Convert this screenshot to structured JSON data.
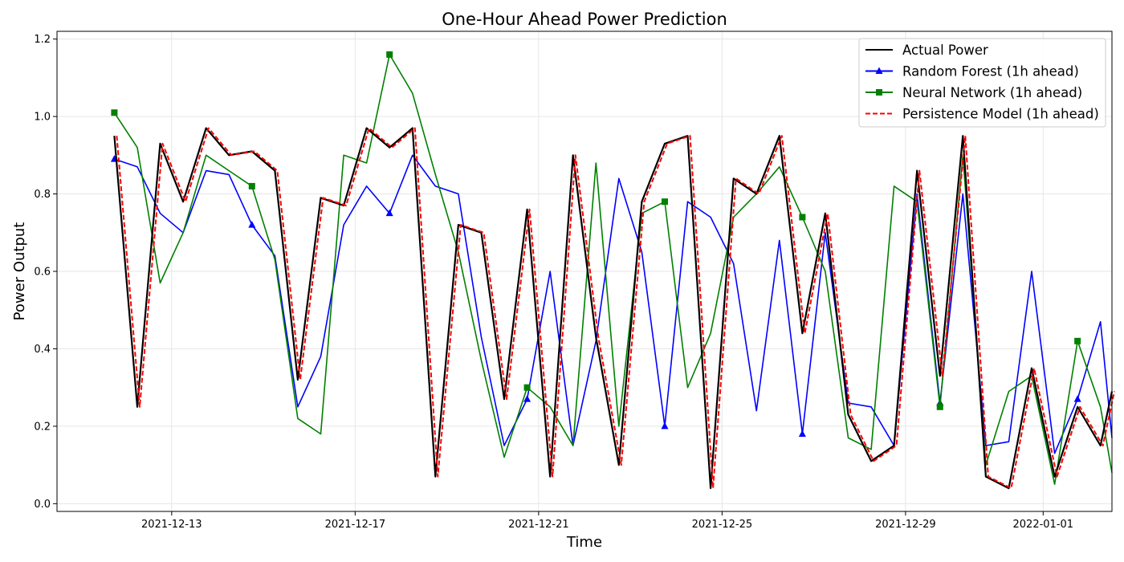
{
  "chart_data": {
    "type": "line",
    "title": "One-Hour Ahead Power Prediction",
    "xlabel": "Time",
    "ylabel": "Power Output",
    "xlim": [
      "2021-12-10T12:00",
      "2022-01-02T12:00"
    ],
    "ylim": [
      -0.02,
      1.22
    ],
    "x_ticks": [
      "2021-12-13",
      "2021-12-17",
      "2021-12-21",
      "2021-12-25",
      "2021-12-29",
      "2022-01-01"
    ],
    "y_ticks": [
      "0.0",
      "0.2",
      "0.4",
      "0.6",
      "0.8",
      "1.0",
      "1.2"
    ],
    "grid": true,
    "legend_position": "top-right",
    "series": [
      {
        "name": "Actual Power",
        "color": "#000000",
        "style": "solid",
        "points": [
          [
            "2021-12-11T18:00",
            0.95
          ],
          [
            "2021-12-12T06:00",
            0.25
          ],
          [
            "2021-12-12T18:00",
            0.93
          ],
          [
            "2021-12-13T06:00",
            0.78
          ],
          [
            "2021-12-13T18:00",
            0.97
          ],
          [
            "2021-12-14T06:00",
            0.9
          ],
          [
            "2021-12-14T18:00",
            0.91
          ],
          [
            "2021-12-15T06:00",
            0.86
          ],
          [
            "2021-12-15T18:00",
            0.32
          ],
          [
            "2021-12-16T06:00",
            0.79
          ],
          [
            "2021-12-16T18:00",
            0.77
          ],
          [
            "2021-12-17T06:00",
            0.97
          ],
          [
            "2021-12-17T18:00",
            0.92
          ],
          [
            "2021-12-18T06:00",
            0.97
          ],
          [
            "2021-12-18T18:00",
            0.07
          ],
          [
            "2021-12-19T06:00",
            0.72
          ],
          [
            "2021-12-19T18:00",
            0.7
          ],
          [
            "2021-12-20T06:00",
            0.27
          ],
          [
            "2021-12-20T18:00",
            0.76
          ],
          [
            "2021-12-21T06:00",
            0.07
          ],
          [
            "2021-12-21T18:00",
            0.9
          ],
          [
            "2021-12-22T06:00",
            0.43
          ],
          [
            "2021-12-22T18:00",
            0.1
          ],
          [
            "2021-12-23T06:00",
            0.78
          ],
          [
            "2021-12-23T18:00",
            0.93
          ],
          [
            "2021-12-24T06:00",
            0.95
          ],
          [
            "2021-12-24T18:00",
            0.04
          ],
          [
            "2021-12-25T06:00",
            0.84
          ],
          [
            "2021-12-25T18:00",
            0.8
          ],
          [
            "2021-12-26T06:00",
            0.95
          ],
          [
            "2021-12-26T18:00",
            0.44
          ],
          [
            "2021-12-27T06:00",
            0.75
          ],
          [
            "2021-12-27T18:00",
            0.23
          ],
          [
            "2021-12-28T06:00",
            0.11
          ],
          [
            "2021-12-28T18:00",
            0.15
          ],
          [
            "2021-12-29T06:00",
            0.86
          ],
          [
            "2021-12-29T18:00",
            0.33
          ],
          [
            "2021-12-30T06:00",
            0.95
          ],
          [
            "2021-12-30T18:00",
            0.07
          ],
          [
            "2021-12-31T06:00",
            0.04
          ],
          [
            "2021-12-31T18:00",
            0.35
          ],
          [
            "2022-01-01T06:00",
            0.07
          ],
          [
            "2022-01-01T18:00",
            0.25
          ],
          [
            "2022-01-02T06:00",
            0.15
          ],
          [
            "2022-01-02T12:00",
            0.29
          ]
        ]
      },
      {
        "name": "Random Forest (1h ahead)",
        "color": "#0000ff",
        "style": "solid",
        "marker": "triangle",
        "points": [
          [
            "2021-12-11T18:00",
            0.89
          ],
          [
            "2021-12-12T06:00",
            0.87
          ],
          [
            "2021-12-12T18:00",
            0.75
          ],
          [
            "2021-12-13T06:00",
            0.7
          ],
          [
            "2021-12-13T18:00",
            0.86
          ],
          [
            "2021-12-14T06:00",
            0.85
          ],
          [
            "2021-12-14T18:00",
            0.72
          ],
          [
            "2021-12-15T06:00",
            0.64
          ],
          [
            "2021-12-15T18:00",
            0.25
          ],
          [
            "2021-12-16T06:00",
            0.38
          ],
          [
            "2021-12-16T18:00",
            0.72
          ],
          [
            "2021-12-17T06:00",
            0.82
          ],
          [
            "2021-12-17T18:00",
            0.75
          ],
          [
            "2021-12-18T06:00",
            0.9
          ],
          [
            "2021-12-18T18:00",
            0.82
          ],
          [
            "2021-12-19T06:00",
            0.8
          ],
          [
            "2021-12-19T18:00",
            0.43
          ],
          [
            "2021-12-20T06:00",
            0.15
          ],
          [
            "2021-12-20T18:00",
            0.27
          ],
          [
            "2021-12-21T06:00",
            0.6
          ],
          [
            "2021-12-21T18:00",
            0.15
          ],
          [
            "2021-12-22T06:00",
            0.42
          ],
          [
            "2021-12-22T18:00",
            0.84
          ],
          [
            "2021-12-23T06:00",
            0.65
          ],
          [
            "2021-12-23T18:00",
            0.2
          ],
          [
            "2021-12-24T06:00",
            0.78
          ],
          [
            "2021-12-24T18:00",
            0.74
          ],
          [
            "2021-12-25T06:00",
            0.62
          ],
          [
            "2021-12-25T18:00",
            0.24
          ],
          [
            "2021-12-26T06:00",
            0.68
          ],
          [
            "2021-12-26T18:00",
            0.18
          ],
          [
            "2021-12-27T06:00",
            0.7
          ],
          [
            "2021-12-27T18:00",
            0.26
          ],
          [
            "2021-12-28T06:00",
            0.25
          ],
          [
            "2021-12-28T18:00",
            0.15
          ],
          [
            "2021-12-29T06:00",
            0.8
          ],
          [
            "2021-12-29T18:00",
            0.26
          ],
          [
            "2021-12-30T06:00",
            0.8
          ],
          [
            "2021-12-30T18:00",
            0.15
          ],
          [
            "2021-12-31T06:00",
            0.16
          ],
          [
            "2021-12-31T18:00",
            0.6
          ],
          [
            "2022-01-01T06:00",
            0.13
          ],
          [
            "2022-01-01T18:00",
            0.27
          ],
          [
            "2022-01-02T06:00",
            0.47
          ],
          [
            "2022-01-02T12:00",
            0.17
          ]
        ]
      },
      {
        "name": "Neural Network (1h ahead)",
        "color": "#008000",
        "style": "solid",
        "marker": "square",
        "points": [
          [
            "2021-12-11T18:00",
            1.01
          ],
          [
            "2021-12-12T06:00",
            0.92
          ],
          [
            "2021-12-12T18:00",
            0.57
          ],
          [
            "2021-12-13T06:00",
            0.7
          ],
          [
            "2021-12-13T18:00",
            0.9
          ],
          [
            "2021-12-14T06:00",
            0.86
          ],
          [
            "2021-12-14T18:00",
            0.82
          ],
          [
            "2021-12-15T06:00",
            0.63
          ],
          [
            "2021-12-15T18:00",
            0.22
          ],
          [
            "2021-12-16T06:00",
            0.18
          ],
          [
            "2021-12-16T18:00",
            0.9
          ],
          [
            "2021-12-17T06:00",
            0.88
          ],
          [
            "2021-12-17T18:00",
            1.16
          ],
          [
            "2021-12-18T06:00",
            1.06
          ],
          [
            "2021-12-18T18:00",
            0.85
          ],
          [
            "2021-12-19T06:00",
            0.65
          ],
          [
            "2021-12-19T18:00",
            0.37
          ],
          [
            "2021-12-20T06:00",
            0.12
          ],
          [
            "2021-12-20T18:00",
            0.3
          ],
          [
            "2021-12-21T06:00",
            0.25
          ],
          [
            "2021-12-21T18:00",
            0.15
          ],
          [
            "2021-12-22T06:00",
            0.88
          ],
          [
            "2021-12-22T18:00",
            0.2
          ],
          [
            "2021-12-23T06:00",
            0.75
          ],
          [
            "2021-12-23T18:00",
            0.78
          ],
          [
            "2021-12-24T06:00",
            0.3
          ],
          [
            "2021-12-24T18:00",
            0.44
          ],
          [
            "2021-12-25T06:00",
            0.74
          ],
          [
            "2021-12-25T18:00",
            0.8
          ],
          [
            "2021-12-26T06:00",
            0.87
          ],
          [
            "2021-12-26T18:00",
            0.74
          ],
          [
            "2021-12-27T06:00",
            0.6
          ],
          [
            "2021-12-27T18:00",
            0.17
          ],
          [
            "2021-12-28T06:00",
            0.14
          ],
          [
            "2021-12-28T18:00",
            0.82
          ],
          [
            "2021-12-29T06:00",
            0.78
          ],
          [
            "2021-12-29T18:00",
            0.25
          ],
          [
            "2021-12-30T06:00",
            0.9
          ],
          [
            "2021-12-30T18:00",
            0.1
          ],
          [
            "2021-12-31T06:00",
            0.29
          ],
          [
            "2021-12-31T18:00",
            0.33
          ],
          [
            "2022-01-01T06:00",
            0.05
          ],
          [
            "2022-01-01T18:00",
            0.42
          ],
          [
            "2022-01-02T06:00",
            0.25
          ],
          [
            "2022-01-02T12:00",
            0.08
          ]
        ]
      },
      {
        "name": "Persistence Model (1h ahead)",
        "color": "#ff0000",
        "style": "dashed",
        "points": [
          [
            "2021-12-11T18:00",
            0.95
          ],
          [
            "2021-12-12T06:00",
            0.25
          ],
          [
            "2021-12-12T18:00",
            0.93
          ],
          [
            "2021-12-13T06:00",
            0.78
          ],
          [
            "2021-12-13T18:00",
            0.97
          ],
          [
            "2021-12-14T06:00",
            0.9
          ],
          [
            "2021-12-14T18:00",
            0.91
          ],
          [
            "2021-12-15T06:00",
            0.86
          ],
          [
            "2021-12-15T18:00",
            0.32
          ],
          [
            "2021-12-16T06:00",
            0.79
          ],
          [
            "2021-12-16T18:00",
            0.77
          ],
          [
            "2021-12-17T06:00",
            0.97
          ],
          [
            "2021-12-17T18:00",
            0.92
          ],
          [
            "2021-12-18T06:00",
            0.97
          ],
          [
            "2021-12-18T18:00",
            0.07
          ],
          [
            "2021-12-19T06:00",
            0.72
          ],
          [
            "2021-12-19T18:00",
            0.7
          ],
          [
            "2021-12-20T06:00",
            0.27
          ],
          [
            "2021-12-20T18:00",
            0.76
          ],
          [
            "2021-12-21T06:00",
            0.07
          ],
          [
            "2021-12-21T18:00",
            0.9
          ],
          [
            "2021-12-22T06:00",
            0.43
          ],
          [
            "2021-12-22T18:00",
            0.1
          ],
          [
            "2021-12-23T06:00",
            0.78
          ],
          [
            "2021-12-23T18:00",
            0.93
          ],
          [
            "2021-12-24T06:00",
            0.95
          ],
          [
            "2021-12-24T18:00",
            0.04
          ],
          [
            "2021-12-25T06:00",
            0.84
          ],
          [
            "2021-12-25T18:00",
            0.8
          ],
          [
            "2021-12-26T06:00",
            0.95
          ],
          [
            "2021-12-26T18:00",
            0.44
          ],
          [
            "2021-12-27T06:00",
            0.75
          ],
          [
            "2021-12-27T18:00",
            0.23
          ],
          [
            "2021-12-28T06:00",
            0.11
          ],
          [
            "2021-12-28T18:00",
            0.15
          ],
          [
            "2021-12-29T06:00",
            0.86
          ],
          [
            "2021-12-29T18:00",
            0.33
          ],
          [
            "2021-12-30T06:00",
            0.95
          ],
          [
            "2021-12-30T18:00",
            0.07
          ],
          [
            "2021-12-31T06:00",
            0.04
          ],
          [
            "2021-12-31T18:00",
            0.35
          ],
          [
            "2022-01-01T06:00",
            0.07
          ],
          [
            "2022-01-01T18:00",
            0.25
          ],
          [
            "2022-01-02T06:00",
            0.15
          ],
          [
            "2022-01-02T12:00",
            0.29
          ]
        ]
      }
    ]
  }
}
